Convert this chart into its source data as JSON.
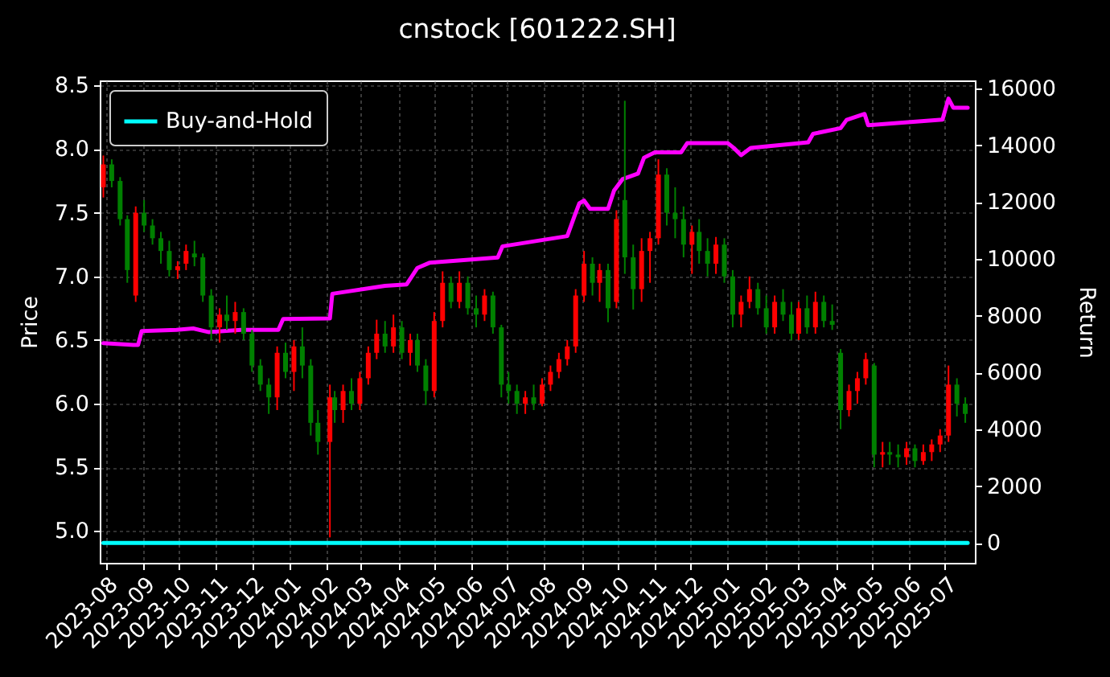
{
  "chart_data": {
    "type": "candlestick",
    "title": "cnstock [601222.SH]",
    "ylabel": "Price",
    "y2label": "Return",
    "x": [
      "2023-07-30",
      "2023-08-06",
      "2023-08-13",
      "2023-08-19",
      "2023-08-26",
      "2023-09-02",
      "2023-09-09",
      "2023-09-16",
      "2023-09-23",
      "2023-09-30",
      "2023-10-07",
      "2023-10-14",
      "2023-10-21",
      "2023-10-28",
      "2023-11-04",
      "2023-11-10",
      "2023-11-17",
      "2023-11-24",
      "2023-12-01",
      "2023-12-08",
      "2023-12-15",
      "2023-12-22",
      "2023-12-29",
      "2024-01-05",
      "2024-01-12",
      "2024-01-19",
      "2024-01-25",
      "2024-02-04",
      "2024-02-08",
      "2024-02-15",
      "2024-02-22",
      "2024-02-29",
      "2024-03-07",
      "2024-03-14",
      "2024-03-21",
      "2024-03-28",
      "2024-04-04",
      "2024-04-11",
      "2024-04-17",
      "2024-04-24",
      "2024-05-01",
      "2024-05-08",
      "2024-05-15",
      "2024-05-22",
      "2024-05-29",
      "2024-06-05",
      "2024-06-12",
      "2024-06-19",
      "2024-06-26",
      "2024-07-02",
      "2024-07-09",
      "2024-07-16",
      "2024-07-23",
      "2024-07-30",
      "2024-08-06",
      "2024-08-13",
      "2024-08-20",
      "2024-08-27",
      "2024-09-03",
      "2024-09-10",
      "2024-09-16",
      "2024-09-23",
      "2024-09-30",
      "2024-10-07",
      "2024-10-14",
      "2024-10-21",
      "2024-10-28",
      "2024-11-04",
      "2024-11-11",
      "2024-11-18",
      "2024-11-25",
      "2024-12-02",
      "2024-12-08",
      "2024-12-15",
      "2024-12-22",
      "2024-12-29",
      "2025-01-05",
      "2025-01-12",
      "2025-01-19",
      "2025-01-26",
      "2025-02-02",
      "2025-02-09",
      "2025-02-16",
      "2025-02-23",
      "2025-03-01",
      "2025-03-08",
      "2025-03-15",
      "2025-03-22",
      "2025-03-29",
      "2025-04-05",
      "2025-04-12",
      "2025-04-19",
      "2025-04-26",
      "2025-05-03",
      "2025-05-10",
      "2025-05-16",
      "2025-05-23",
      "2025-05-30",
      "2025-06-06",
      "2025-06-13",
      "2025-06-20",
      "2025-06-27",
      "2025-07-04",
      "2025-07-11",
      "2025-07-18"
    ],
    "ohlc": [
      [
        7.7,
        7.95,
        7.62,
        7.88
      ],
      [
        7.88,
        7.92,
        7.7,
        7.75
      ],
      [
        7.75,
        7.78,
        7.4,
        7.45
      ],
      [
        7.45,
        7.48,
        6.95,
        7.05
      ],
      [
        6.85,
        7.55,
        6.8,
        7.5
      ],
      [
        7.5,
        7.6,
        7.35,
        7.4
      ],
      [
        7.4,
        7.45,
        7.25,
        7.3
      ],
      [
        7.3,
        7.35,
        7.1,
        7.2
      ],
      [
        7.2,
        7.28,
        7.0,
        7.05
      ],
      [
        7.05,
        7.12,
        6.98,
        7.08
      ],
      [
        7.1,
        7.25,
        7.05,
        7.2
      ],
      [
        7.18,
        7.28,
        7.08,
        7.15
      ],
      [
        7.15,
        7.18,
        6.8,
        6.85
      ],
      [
        6.85,
        6.9,
        6.5,
        6.6
      ],
      [
        6.6,
        6.75,
        6.48,
        6.7
      ],
      [
        6.7,
        6.85,
        6.58,
        6.65
      ],
      [
        6.65,
        6.8,
        6.55,
        6.72
      ],
      [
        6.72,
        6.75,
        6.5,
        6.55
      ],
      [
        6.55,
        6.58,
        6.25,
        6.3
      ],
      [
        6.3,
        6.35,
        6.1,
        6.15
      ],
      [
        6.15,
        6.2,
        5.92,
        6.05
      ],
      [
        6.05,
        6.45,
        5.95,
        6.4
      ],
      [
        6.4,
        6.48,
        6.2,
        6.25
      ],
      [
        6.25,
        6.5,
        6.1,
        6.45
      ],
      [
        6.45,
        6.6,
        6.2,
        6.3
      ],
      [
        6.3,
        6.35,
        5.75,
        5.85
      ],
      [
        5.85,
        5.95,
        5.6,
        5.7
      ],
      [
        5.7,
        6.15,
        4.95,
        6.05
      ],
      [
        6.05,
        6.1,
        5.85,
        5.95
      ],
      [
        5.95,
        6.15,
        5.85,
        6.1
      ],
      [
        6.1,
        6.2,
        5.95,
        6.0
      ],
      [
        6.0,
        6.25,
        5.95,
        6.2
      ],
      [
        6.2,
        6.45,
        6.15,
        6.4
      ],
      [
        6.4,
        6.66,
        6.35,
        6.55
      ],
      [
        6.55,
        6.65,
        6.4,
        6.45
      ],
      [
        6.45,
        6.7,
        6.4,
        6.6
      ],
      [
        6.6,
        6.65,
        6.35,
        6.4
      ],
      [
        6.4,
        6.55,
        6.3,
        6.5
      ],
      [
        6.5,
        6.55,
        6.25,
        6.3
      ],
      [
        6.3,
        6.35,
        5.99,
        6.1
      ],
      [
        6.1,
        6.72,
        6.05,
        6.65
      ],
      [
        6.65,
        7.04,
        6.6,
        6.95
      ],
      [
        6.95,
        7.0,
        6.75,
        6.8
      ],
      [
        6.8,
        7.04,
        6.75,
        6.95
      ],
      [
        6.95,
        7.0,
        6.7,
        6.75
      ],
      [
        6.75,
        6.85,
        6.6,
        6.7
      ],
      [
        6.7,
        6.9,
        6.65,
        6.85
      ],
      [
        6.85,
        6.88,
        6.55,
        6.6
      ],
      [
        6.6,
        6.62,
        6.05,
        6.15
      ],
      [
        6.15,
        6.25,
        6.0,
        6.1
      ],
      [
        6.1,
        6.15,
        5.92,
        6.0
      ],
      [
        6.0,
        6.1,
        5.92,
        6.05
      ],
      [
        6.05,
        6.15,
        5.95,
        6.0
      ],
      [
        6.0,
        6.2,
        5.98,
        6.15
      ],
      [
        6.15,
        6.3,
        6.1,
        6.25
      ],
      [
        6.25,
        6.4,
        6.2,
        6.35
      ],
      [
        6.35,
        6.5,
        6.3,
        6.45
      ],
      [
        6.45,
        6.9,
        6.4,
        6.85
      ],
      [
        6.85,
        7.2,
        6.8,
        7.1
      ],
      [
        7.1,
        7.15,
        6.85,
        6.95
      ],
      [
        6.95,
        7.1,
        6.8,
        7.05
      ],
      [
        7.05,
        7.1,
        6.64,
        6.75
      ],
      [
        6.8,
        7.52,
        6.75,
        7.45
      ],
      [
        7.6,
        8.38,
        7.02,
        7.15
      ],
      [
        7.15,
        7.25,
        6.74,
        6.9
      ],
      [
        6.9,
        7.3,
        6.8,
        7.2
      ],
      [
        7.2,
        7.35,
        6.95,
        7.3
      ],
      [
        7.3,
        7.92,
        7.25,
        7.8
      ],
      [
        7.8,
        7.85,
        7.4,
        7.5
      ],
      [
        7.5,
        7.7,
        7.3,
        7.45
      ],
      [
        7.45,
        7.55,
        7.15,
        7.25
      ],
      [
        7.25,
        7.4,
        7.02,
        7.35
      ],
      [
        7.35,
        7.45,
        7.1,
        7.2
      ],
      [
        7.2,
        7.3,
        7.0,
        7.1
      ],
      [
        7.1,
        7.31,
        7.02,
        7.25
      ],
      [
        7.25,
        7.3,
        6.95,
        7.0
      ],
      [
        7.0,
        7.05,
        6.6,
        6.7
      ],
      [
        6.7,
        6.85,
        6.6,
        6.8
      ],
      [
        6.8,
        7.0,
        6.75,
        6.9
      ],
      [
        6.9,
        6.95,
        6.7,
        6.75
      ],
      [
        6.75,
        6.85,
        6.55,
        6.6
      ],
      [
        6.6,
        6.85,
        6.55,
        6.8
      ],
      [
        6.8,
        6.9,
        6.65,
        6.7
      ],
      [
        6.7,
        6.8,
        6.5,
        6.55
      ],
      [
        6.55,
        6.8,
        6.5,
        6.75
      ],
      [
        6.75,
        6.85,
        6.55,
        6.6
      ],
      [
        6.6,
        6.88,
        6.55,
        6.8
      ],
      [
        6.8,
        6.85,
        6.6,
        6.65
      ],
      [
        6.65,
        6.78,
        6.58,
        6.62
      ],
      [
        6.4,
        6.43,
        5.8,
        5.95
      ],
      [
        5.95,
        6.15,
        5.9,
        6.1
      ],
      [
        6.1,
        6.25,
        6.0,
        6.2
      ],
      [
        6.2,
        6.4,
        6.15,
        6.35
      ],
      [
        6.3,
        6.32,
        5.5,
        5.6
      ],
      [
        5.6,
        5.7,
        5.5,
        5.62
      ],
      [
        5.62,
        5.7,
        5.52,
        5.6
      ],
      [
        5.6,
        5.68,
        5.5,
        5.58
      ],
      [
        5.58,
        5.7,
        5.52,
        5.65
      ],
      [
        5.65,
        5.68,
        5.5,
        5.55
      ],
      [
        5.55,
        5.68,
        5.52,
        5.62
      ],
      [
        5.62,
        5.72,
        5.55,
        5.68
      ],
      [
        5.68,
        5.8,
        5.62,
        5.75
      ],
      [
        5.75,
        6.3,
        5.7,
        6.15
      ],
      [
        6.15,
        6.2,
        5.9,
        6.0
      ],
      [
        6.0,
        6.05,
        5.85,
        5.92
      ]
    ],
    "colors": [
      "#ff0000",
      "#008000",
      "#008000",
      "#008000",
      "#ff0000",
      "#008000",
      "#008000",
      "#008000",
      "#008000",
      "#ff0000",
      "#ff0000",
      "#008000",
      "#008000",
      "#008000",
      "#ff0000",
      "#008000",
      "#ff0000",
      "#008000",
      "#008000",
      "#008000",
      "#008000",
      "#ff0000",
      "#008000",
      "#ff0000",
      "#008000",
      "#008000",
      "#008000",
      "#ff0000",
      "#008000",
      "#ff0000",
      "#008000",
      "#ff0000",
      "#ff0000",
      "#ff0000",
      "#008000",
      "#ff0000",
      "#008000",
      "#ff0000",
      "#008000",
      "#008000",
      "#ff0000",
      "#ff0000",
      "#008000",
      "#ff0000",
      "#008000",
      "#008000",
      "#ff0000",
      "#008000",
      "#008000",
      "#008000",
      "#008000",
      "#ff0000",
      "#008000",
      "#ff0000",
      "#ff0000",
      "#ff0000",
      "#ff0000",
      "#ff0000",
      "#ff0000",
      "#008000",
      "#ff0000",
      "#008000",
      "#ff0000",
      "#008000",
      "#008000",
      "#ff0000",
      "#ff0000",
      "#ff0000",
      "#008000",
      "#008000",
      "#008000",
      "#ff0000",
      "#008000",
      "#008000",
      "#ff0000",
      "#008000",
      "#008000",
      "#ff0000",
      "#ff0000",
      "#008000",
      "#008000",
      "#ff0000",
      "#008000",
      "#008000",
      "#ff0000",
      "#008000",
      "#ff0000",
      "#008000",
      "#008000",
      "#008000",
      "#ff0000",
      "#ff0000",
      "#ff0000",
      "#008000",
      "#ff0000",
      "#008000",
      "#008000",
      "#ff0000",
      "#008000",
      "#ff0000",
      "#ff0000",
      "#ff0000",
      "#ff0000",
      "#008000",
      "#008000"
    ],
    "series": [
      {
        "type": "line",
        "axis": "y2",
        "color": "#ff00ff",
        "x": [
          "2023-07-30",
          "2023-08-24",
          "2023-08-28",
          "2023-08-31",
          "2023-09-29",
          "2023-10-13",
          "2023-10-26",
          "2023-11-22",
          "2023-12-23",
          "2023-12-27",
          "2024-02-04",
          "2024-02-06",
          "2024-03-21",
          "2024-04-08",
          "2024-04-17",
          "2024-04-27",
          "2024-06-23",
          "2024-06-27",
          "2024-08-20",
          "2024-08-26",
          "2024-08-30",
          "2024-09-03",
          "2024-09-08",
          "2024-09-23",
          "2024-09-28",
          "2024-10-05",
          "2024-10-18",
          "2024-10-23",
          "2024-11-01",
          "2024-11-23",
          "2024-11-28",
          "2025-01-01",
          "2025-01-06",
          "2025-01-12",
          "2025-01-20",
          "2025-03-09",
          "2025-03-13",
          "2025-04-05",
          "2025-04-10",
          "2025-04-25",
          "2025-04-28",
          "2025-06-29",
          "2025-07-04",
          "2025-07-08",
          "2025-07-20"
        ],
        "values": [
          7030,
          6970,
          6970,
          7460,
          7500,
          7550,
          7420,
          7500,
          7500,
          7880,
          7900,
          8770,
          9050,
          9100,
          9680,
          9860,
          10050,
          10440,
          10800,
          11500,
          11950,
          12050,
          11760,
          11760,
          12400,
          12800,
          13000,
          13560,
          13750,
          13750,
          14070,
          14070,
          13900,
          13650,
          13900,
          14100,
          14400,
          14600,
          14890,
          15100,
          14700,
          14900,
          15640,
          15320,
          15320
        ]
      },
      {
        "name": "Buy-and-Hold",
        "type": "line",
        "axis": "y2",
        "color": "#00ffff",
        "x": [
          "2023-07-30",
          "2025-07-20"
        ],
        "values": [
          0,
          0
        ]
      }
    ],
    "xlim": [
      "2023-07-27",
      "2025-07-26"
    ],
    "xticks": [
      "2023-08",
      "2023-09",
      "2023-10",
      "2023-11",
      "2023-12",
      "2024-01",
      "2024-02",
      "2024-03",
      "2024-04",
      "2024-05",
      "2024-06",
      "2024-07",
      "2024-08",
      "2024-09",
      "2024-10",
      "2024-11",
      "2024-12",
      "2025-01",
      "2025-02",
      "2025-03",
      "2025-04",
      "2025-05",
      "2025-06",
      "2025-07"
    ],
    "ylim": [
      4.75,
      8.54
    ],
    "yticks": [
      {
        "value": 5,
        "label": "5.0"
      },
      5.5,
      {
        "value": 6,
        "label": "6.0"
      },
      6.5,
      {
        "value": 7,
        "label": "7.0"
      },
      7.5,
      {
        "value": 8,
        "label": "8.0"
      },
      8.5
    ],
    "y2lim": [
      -700,
      16280
    ],
    "y2ticks": [
      0,
      2000,
      4000,
      6000,
      8000,
      10000,
      12000,
      14000,
      16000
    ],
    "grid": true,
    "legend": "top left"
  }
}
